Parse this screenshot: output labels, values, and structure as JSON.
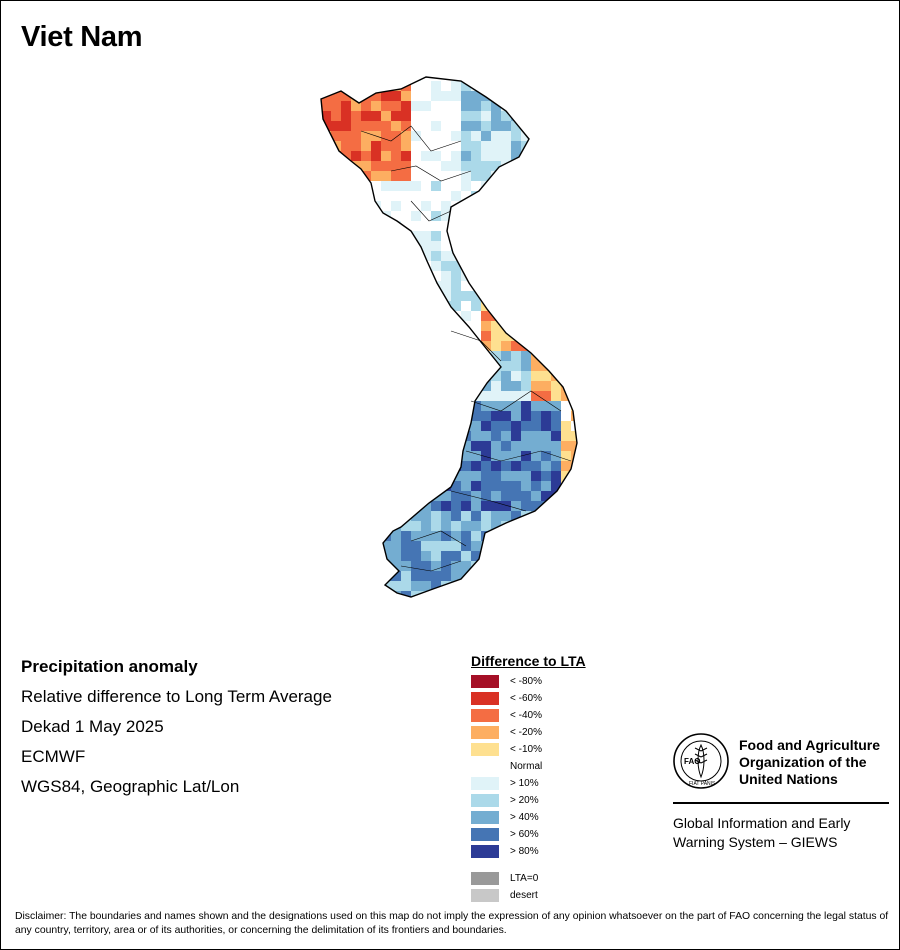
{
  "map_title": "Viet Nam",
  "info": {
    "heading": "Precipitation anomaly",
    "line1": "Relative difference to Long Term Average",
    "line2": "Dekad 1 May 2025",
    "line3": "ECMWF",
    "line4": "WGS84, Geographic Lat/Lon"
  },
  "legend": {
    "title": "Difference to LTA",
    "items": [
      {
        "label": "< -80%",
        "color": "#a50f26"
      },
      {
        "label": "< -60%",
        "color": "#d93124"
      },
      {
        "label": "< -40%",
        "color": "#f46d43"
      },
      {
        "label": "< -20%",
        "color": "#fdae61"
      },
      {
        "label": "< -10%",
        "color": "#fee090"
      },
      {
        "label": "Normal",
        "color": "#ffffff"
      },
      {
        "label": "> 10%",
        "color": "#e0f3f8"
      },
      {
        "label": "> 20%",
        "color": "#abd9e9"
      },
      {
        "label": "> 40%",
        "color": "#74add1"
      },
      {
        "label": "> 60%",
        "color": "#4575b4"
      },
      {
        "label": "> 80%",
        "color": "#2c3b96"
      }
    ],
    "extra": [
      {
        "label": "LTA=0",
        "color": "#999999"
      },
      {
        "label": "desert",
        "color": "#c8c8c8"
      }
    ]
  },
  "org": {
    "name_line1": "Food and Agriculture",
    "name_line2": "Organization of the",
    "name_line3": "United Nations",
    "system_line1": "Global Information and Early",
    "system_line2": "Warning System – GIEWS",
    "logo_letters": "FAO",
    "logo_motto": "FIAT PANIS"
  },
  "disclaimer": "Disclaimer: The boundaries and names shown and the designations used on this map do not imply the expression of any opinion whatsoever on the part of FAO concerning the legal status of any country, territory, area or of its authorities, or concerning the delimitation of its frontiers and boundaries."
}
